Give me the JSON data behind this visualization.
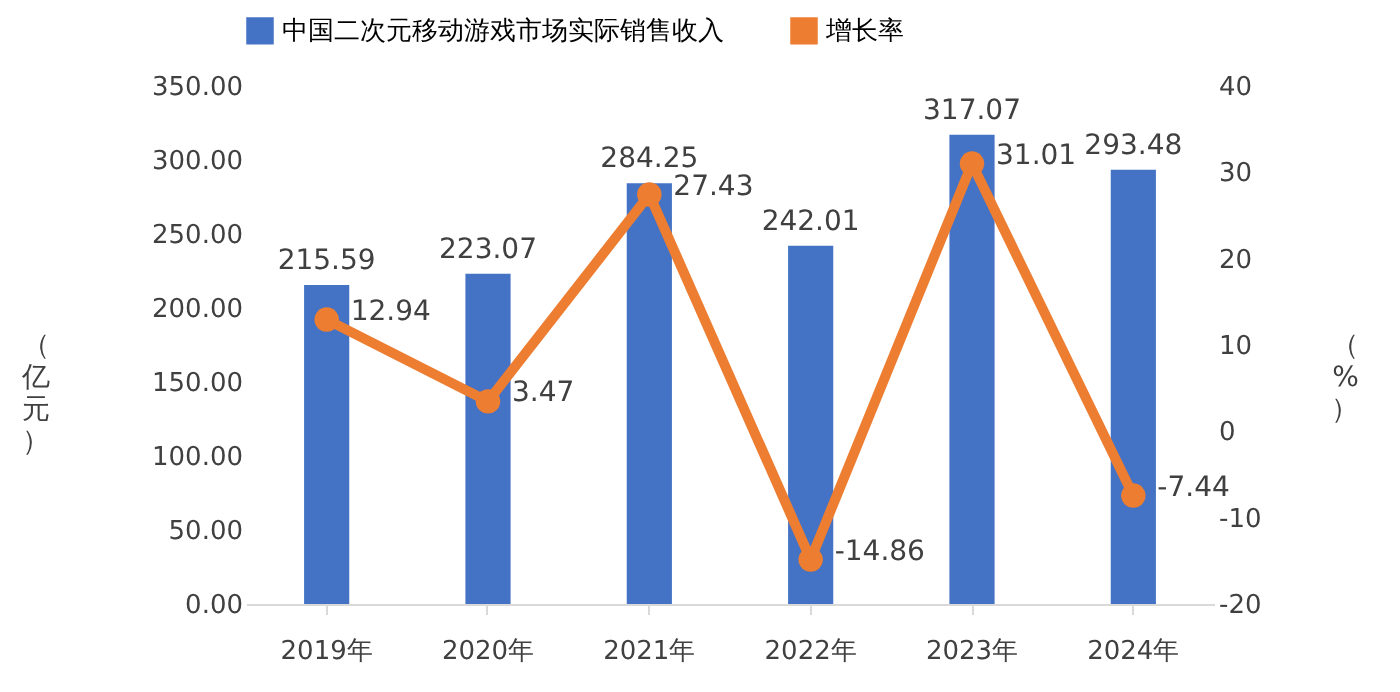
{
  "chart_data": {
    "type": "bar",
    "ylabel": "（亿元）",
    "y2label": "（%）",
    "categories": [
      "2019年",
      "2020年",
      "2021年",
      "2022年",
      "2023年",
      "2024年"
    ],
    "series": [
      {
        "name": "中国二次元移动游戏市场实际销售收入",
        "color": "#4472c4",
        "values": [
          215.59,
          223.07,
          284.25,
          242.01,
          317.07,
          293.48
        ]
      },
      {
        "name": "增长率",
        "type": "line",
        "axis": "y2",
        "color": "#ed7d31",
        "values": [
          12.94,
          3.47,
          27.43,
          -14.86,
          31.01,
          -7.44
        ]
      }
    ],
    "ylim": [
      0,
      350
    ],
    "yticks": [
      {
        "value": 0,
        "label": "0.00"
      },
      {
        "value": 50,
        "label": "50.00"
      },
      {
        "value": 100,
        "label": "100.00"
      },
      {
        "value": 150,
        "label": "150.00"
      },
      {
        "value": 200,
        "label": "200.00"
      },
      {
        "value": 250,
        "label": "250.00"
      },
      {
        "value": 300,
        "label": "300.00"
      },
      {
        "value": 350,
        "label": "350.00"
      }
    ],
    "y2lim": [
      -20,
      40
    ],
    "y2ticks": [
      -20,
      -10,
      0,
      10,
      20,
      30,
      40
    ],
    "data_labels": true,
    "grid": false,
    "legend": "top",
    "marker": "circle",
    "line_style": "solid"
  }
}
